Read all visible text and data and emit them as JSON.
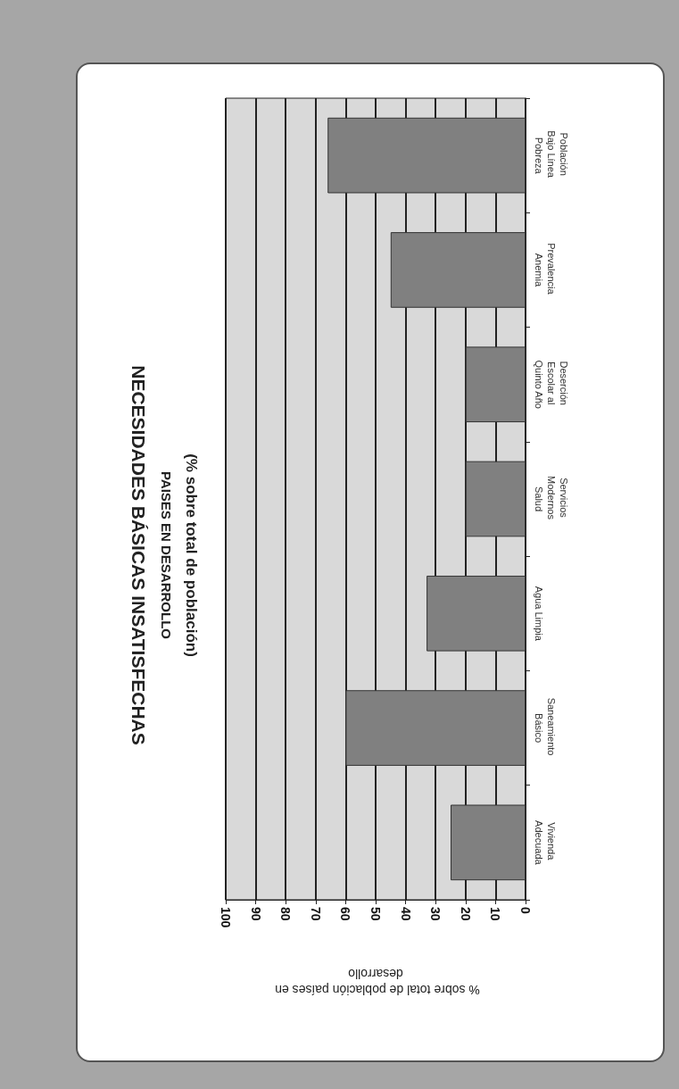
{
  "chart_data": {
    "type": "bar",
    "orientation": "horizontal",
    "title": "NECESIDADES BÁSICAS INSATISFECHAS",
    "subtitle": "PAISES EN DESARROLLO",
    "annotations": [
      "(% sobre total de población)"
    ],
    "xlabel": "% sobre total de población países en desarrollo",
    "categories": [
      "Población Bajo Línea Pobreza",
      "Prevalencia Anemia",
      "Deserción Escolar al Quinto Año",
      "Servicios Modernos Salud",
      "Agua Limpia",
      "Saneamiento Básico",
      "Vivienda Adecuada"
    ],
    "values": [
      66,
      45,
      20,
      20,
      33,
      60,
      25
    ],
    "color": "#808080",
    "xlim": [
      100,
      0
    ],
    "xticks": [
      0,
      10,
      20,
      30,
      40,
      50,
      60,
      70,
      80,
      90,
      100
    ],
    "grid": "x"
  }
}
